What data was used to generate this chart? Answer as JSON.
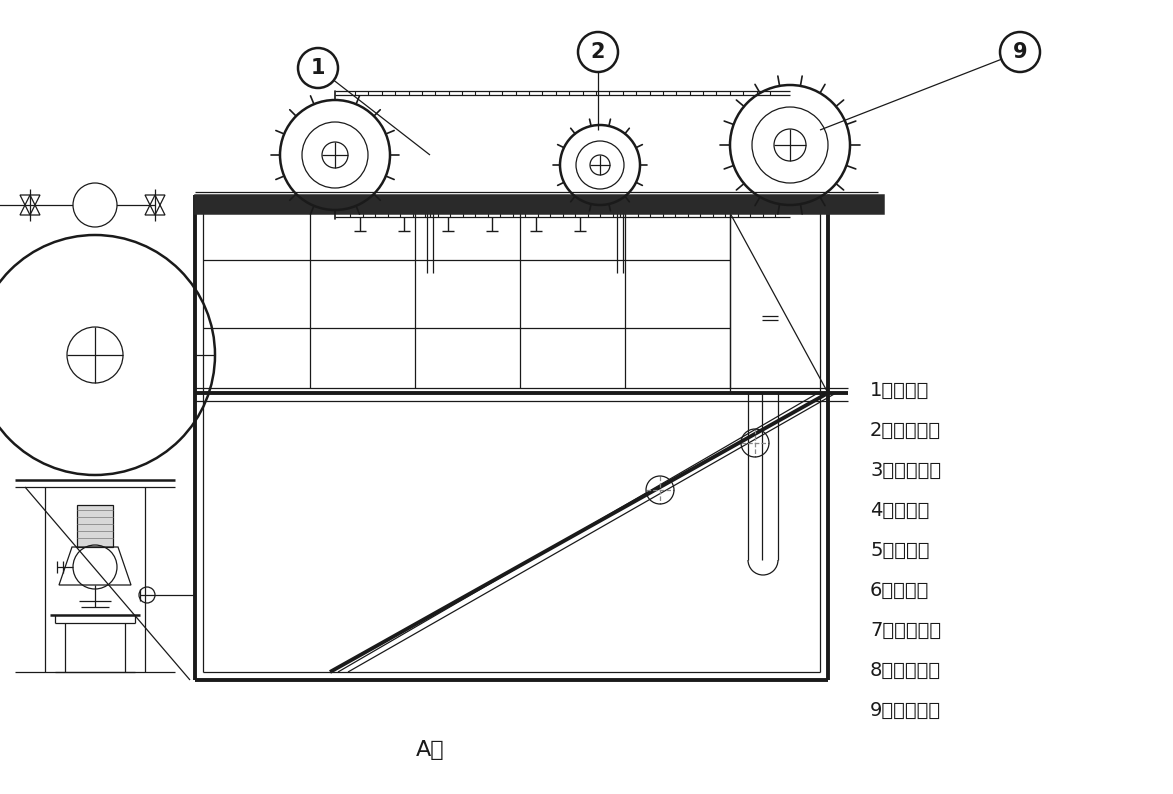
{
  "bg_color": "#ffffff",
  "line_color": "#1a1a1a",
  "title_label": "A向",
  "legend_items": [
    "1、刷渣板",
    "2、刷渣链条",
    "3、检修爬梯",
    "4、刷渣板",
    "5、溶气罐",
    "6、溶气泵",
    "7、控制系统",
    "8、链条支座",
    "9、驱动电机"
  ],
  "figsize": [
    11.73,
    7.94
  ],
  "dpi": 100
}
